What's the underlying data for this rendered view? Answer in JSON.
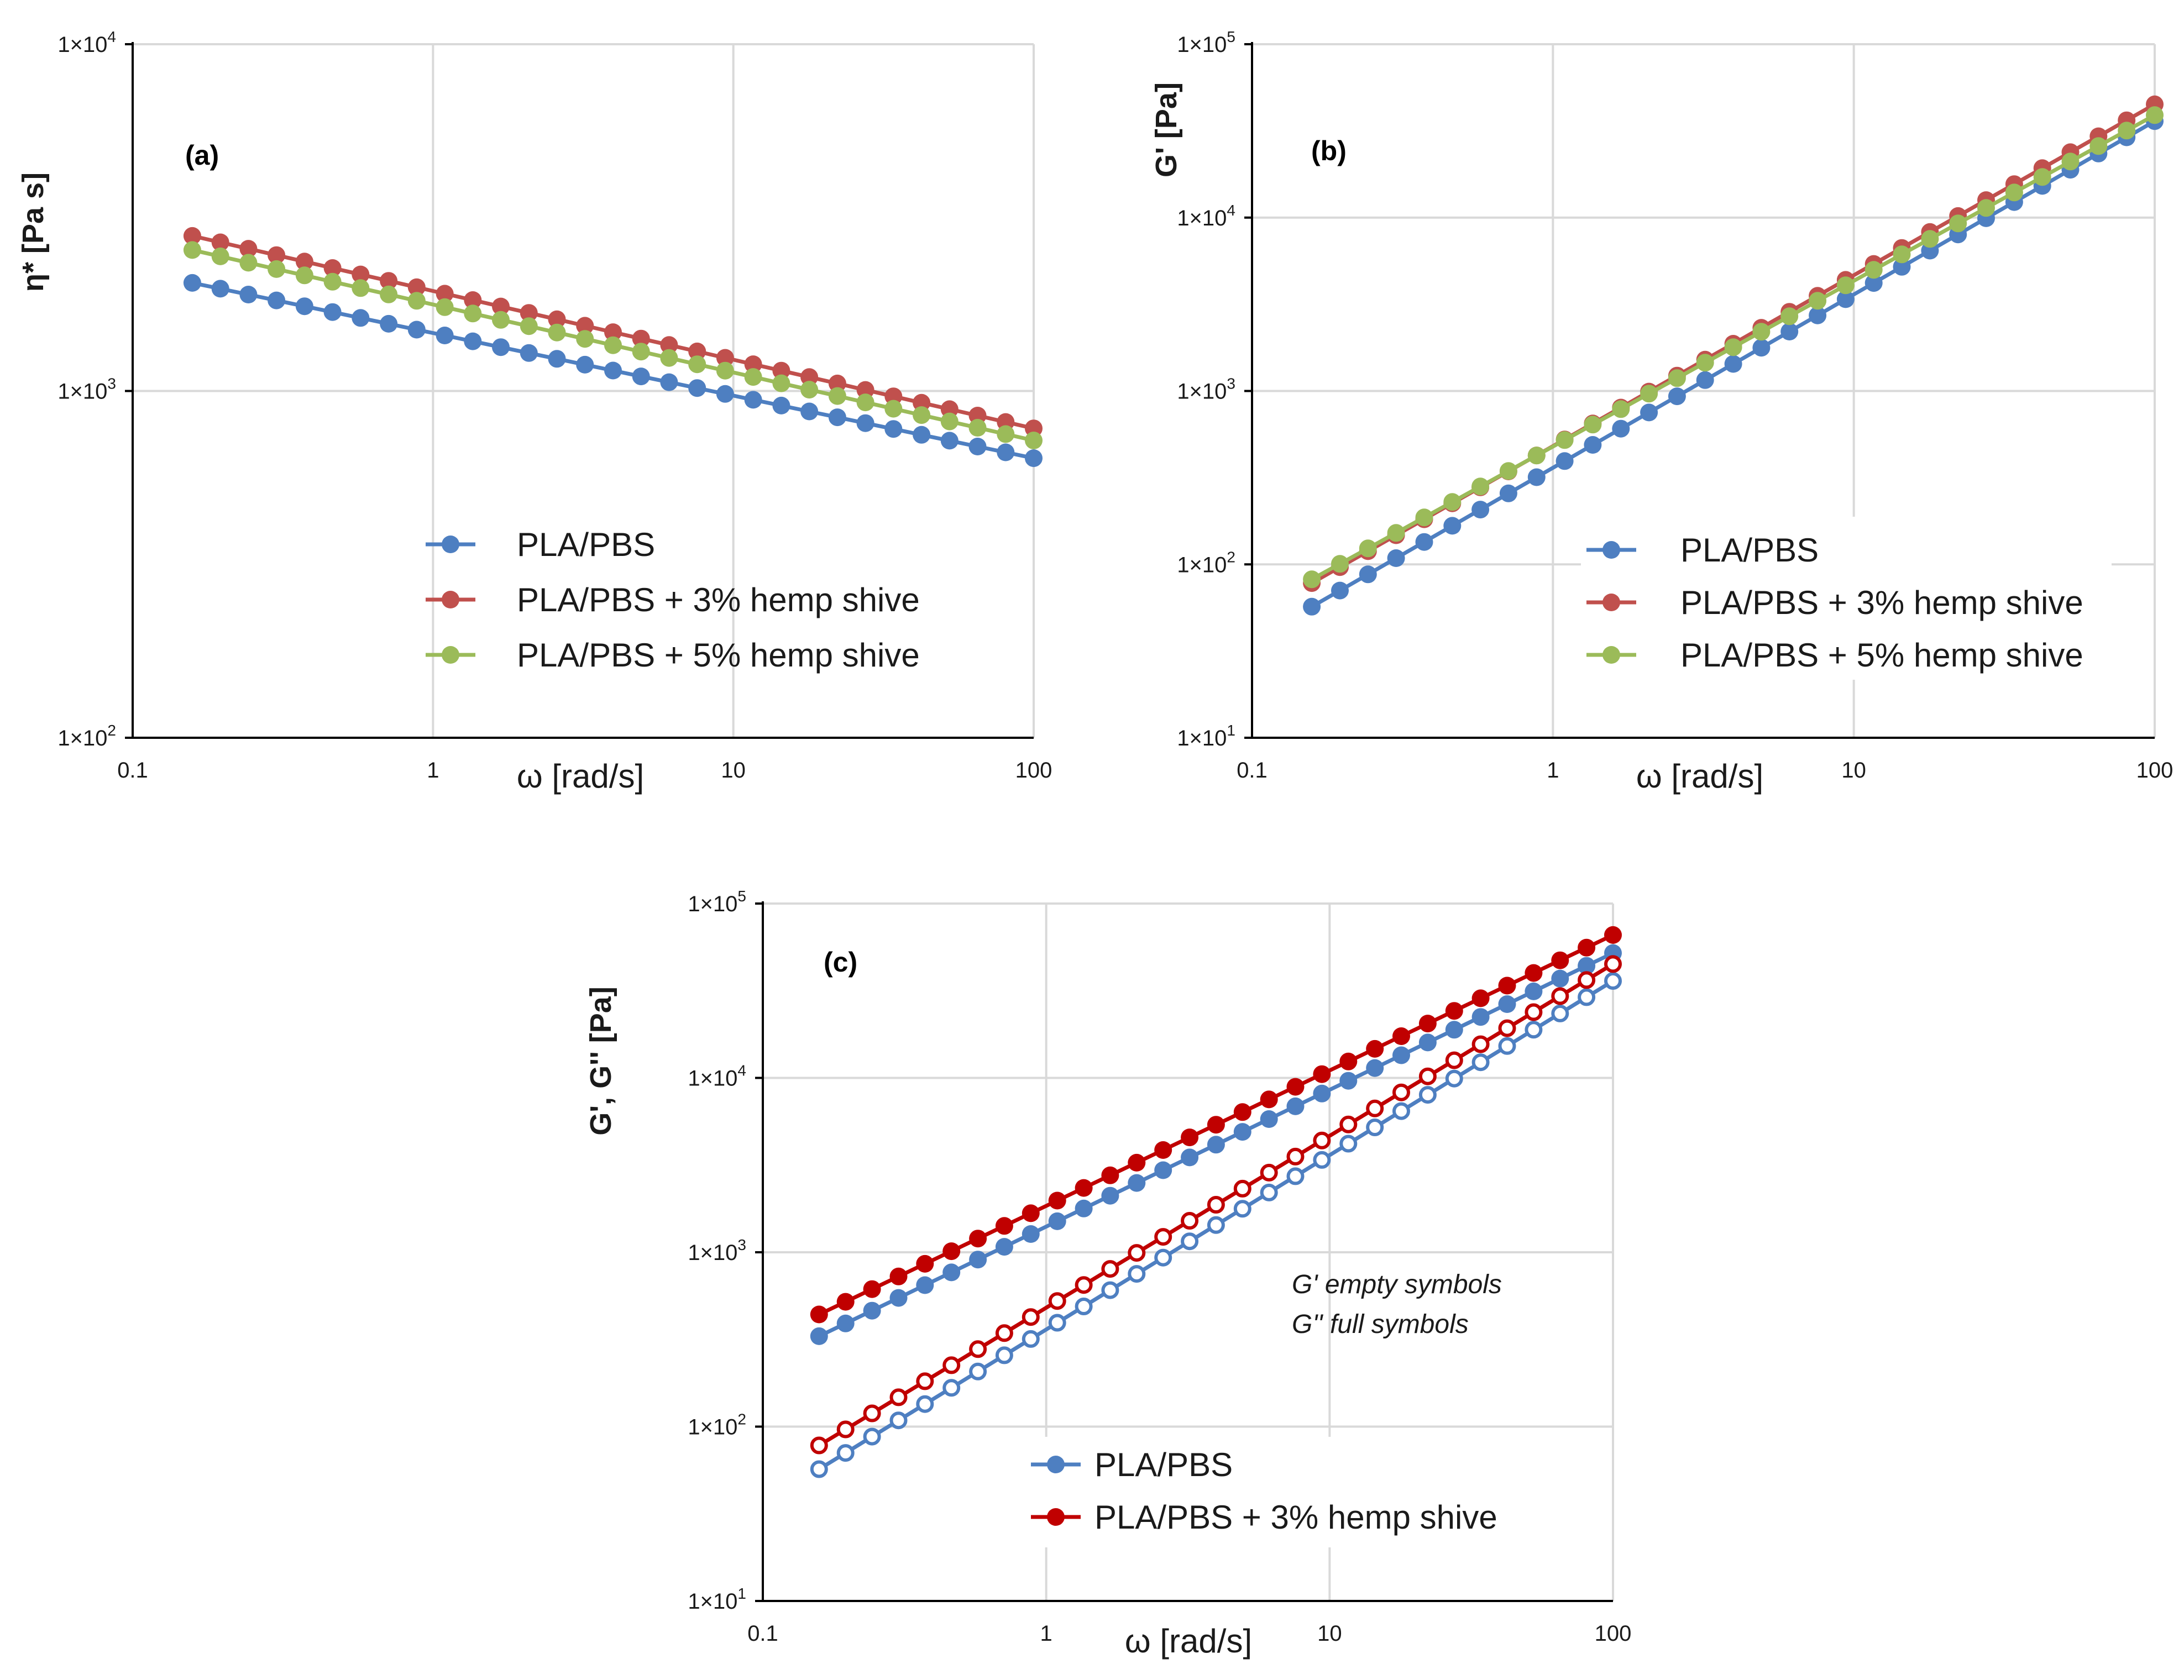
{
  "chart_data": [
    {
      "id": "a",
      "type": "line",
      "panel_label": "(a)",
      "xlabel": "ω [rad/s]",
      "ylabel": "η* [Pa s]",
      "xscale": "log",
      "yscale": "log",
      "xlim": [
        0.1,
        100
      ],
      "ylim": [
        100,
        10000
      ],
      "x_ticks": [
        "0.1",
        "1",
        "10",
        "100"
      ],
      "y_ticks": [
        {
          "base": "1×10",
          "exp": "2"
        },
        {
          "base": "1×10",
          "exp": "3"
        },
        {
          "base": "1×10",
          "exp": "4"
        }
      ],
      "grid": true,
      "legend_position": "center",
      "series": [
        {
          "name": "PLA/PBS",
          "color": "#4e7fc1",
          "marker": "filled",
          "y0": 2050,
          "y1": 640
        },
        {
          "name": "PLA/PBS + 3% hemp shive",
          "color": "#c0504d",
          "marker": "filled",
          "y0": 2800,
          "y1": 780
        },
        {
          "name": "PLA/PBS + 5% hemp shive",
          "color": "#9bbb59",
          "marker": "filled",
          "y0": 2550,
          "y1": 720
        }
      ]
    },
    {
      "id": "b",
      "type": "line",
      "panel_label": "(b)",
      "xlabel": "ω [rad/s]",
      "ylabel": "G' [Pa]",
      "xscale": "log",
      "yscale": "log",
      "xlim": [
        0.1,
        100
      ],
      "ylim": [
        10,
        100000
      ],
      "x_ticks": [
        "0.1",
        "1",
        "10",
        "100"
      ],
      "y_ticks": [
        {
          "base": "1×10",
          "exp": "1"
        },
        {
          "base": "1×10",
          "exp": "2"
        },
        {
          "base": "1×10",
          "exp": "3"
        },
        {
          "base": "1×10",
          "exp": "4"
        },
        {
          "base": "1×10",
          "exp": "5"
        }
      ],
      "grid": true,
      "legend_position": "bottom-right",
      "series": [
        {
          "name": "PLA/PBS",
          "color": "#4e7fc1",
          "marker": "filled",
          "y0": 57,
          "y1": 36000
        },
        {
          "name": "PLA/PBS + 3% hemp shive",
          "color": "#c0504d",
          "marker": "filled",
          "y0": 78,
          "y1": 45000
        },
        {
          "name": "PLA/PBS + 5% hemp shive",
          "color": "#9bbb59",
          "marker": "filled",
          "y0": 82,
          "y1": 39000
        }
      ]
    },
    {
      "id": "c",
      "type": "line",
      "panel_label": "(c)",
      "xlabel": "ω [rad/s]",
      "ylabel": "G', G'' [Pa]",
      "xscale": "log",
      "yscale": "log",
      "xlim": [
        0.1,
        100
      ],
      "ylim": [
        10,
        100000
      ],
      "x_ticks": [
        "0.1",
        "1",
        "10",
        "100"
      ],
      "y_ticks": [
        {
          "base": "1×10",
          "exp": "1"
        },
        {
          "base": "1×10",
          "exp": "2"
        },
        {
          "base": "1×10",
          "exp": "3"
        },
        {
          "base": "1×10",
          "exp": "4"
        },
        {
          "base": "1×10",
          "exp": "5"
        }
      ],
      "grid": true,
      "legend_position": "bottom-center",
      "annotations": [
        "G' empty symbols",
        "G'' full symbols"
      ],
      "series": [
        {
          "name": "PLA/PBS",
          "color": "#4e7fc1",
          "marker": "filled",
          "y0": 330,
          "y1": 52000,
          "legend": true
        },
        {
          "name": "PLA/PBS + 3% hemp shive",
          "color": "#c00000",
          "marker": "filled",
          "y0": 440,
          "y1": 66000,
          "legend": true
        },
        {
          "name": "PLA/PBS",
          "color": "#4e7fc1",
          "marker": "open",
          "y0": 57,
          "y1": 36000,
          "legend": false
        },
        {
          "name": "PLA/PBS + 3% hemp shive",
          "color": "#c00000",
          "marker": "open",
          "y0": 78,
          "y1": 45000,
          "legend": false
        }
      ]
    }
  ]
}
